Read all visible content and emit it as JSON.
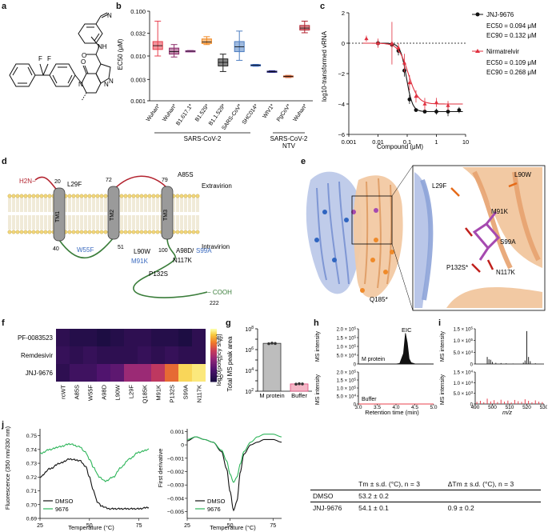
{
  "panel_labels": [
    "a",
    "b",
    "c",
    "d",
    "e",
    "f",
    "g",
    "h",
    "i",
    "j"
  ],
  "colors": {
    "jnj": "#111111",
    "nirm": "#e0303f",
    "wuhan": "#e8404e",
    "delta": "#8c2c6a",
    "b1617": "#a84aa0",
    "b1529": "#f08a24",
    "ba": "#222222",
    "sars1": "#4f7fc2",
    "shc014": "#3a6abf",
    "wiv1": "#2a2a86",
    "pgcov": "#c9663c",
    "wuhan_ntv": "#b3232f",
    "gray_bar": "#bdbdbd",
    "pink_bar": "#f4b6c6",
    "membrane": "#f3d77a",
    "loop_red": "#b3232f",
    "loop_green": "#3a7d3a",
    "tm_gray": "#9a9a9a",
    "blue_mut": "#3a6abf",
    "dmso": "#111111",
    "c9676": "#2eb55a"
  },
  "panel_a": {
    "label": "a",
    "struct_text": [
      "F",
      "F",
      "N",
      "O",
      "N",
      "N",
      "O",
      "NH",
      "N"
    ]
  },
  "panel_b": {
    "ylabel": "EC50 (μM)",
    "y_ticks": [
      {
        "v": 0.001,
        "t": "0.001"
      },
      {
        "v": 0.003,
        "t": "0.003"
      },
      {
        "v": 0.01,
        "t": "0.010"
      },
      {
        "v": 0.032,
        "t": "0.032"
      },
      {
        "v": 0.1,
        "t": "0.100"
      }
    ],
    "group_labels": [
      "SARS-CoV-2",
      "SARS-CoV-2 NTV"
    ]
  },
  "panel_c": {
    "ylabel": "log10-transformed vRNA",
    "xlabel": "Compound (μM)",
    "x_ticks": [
      "0.001",
      "0.01",
      "0.1",
      "1",
      "10"
    ],
    "y_ticks": [
      "2",
      "0",
      "−2",
      "−4",
      "−6"
    ],
    "legend": [
      {
        "name": "JNJ-9676",
        "ec50": "EC50 = 0.094 μM",
        "ec90": "EC90 = 0.132 μM"
      },
      {
        "name": "Nirmatrelvir",
        "ec50": "EC50 = 0.109 μM",
        "ec90": "EC90 = 0.268 μM"
      }
    ]
  },
  "panel_d": {
    "labels": {
      "nterm": "H2N−",
      "cterm": "− COOH",
      "extravirion": "Extravirion",
      "intravirion": "Intravirion",
      "tm1": "TM1",
      "tm2": "TM2",
      "tm3": "TM3",
      "n20": "20",
      "n40": "40",
      "n72": "72",
      "n51": "51",
      "n79": "79",
      "n100": "100",
      "n222": "222"
    },
    "mutations_black": [
      "L29F",
      "A85S",
      "L90W",
      "N117K",
      "P132S"
    ],
    "mutations_blue": [
      "W55F",
      "M91K",
      "S99A"
    ],
    "a98d": "A98D/"
  },
  "panel_e": {
    "inset_labels": [
      "L90W",
      "L29F",
      "M91K",
      "S99A",
      "P132S*",
      "N117K"
    ],
    "q185": "Q185*"
  },
  "panel_f": {
    "rows": [
      "PF-0083523",
      "Remdesivir",
      "JNJ-9676"
    ],
    "cols": [
      "rcWT",
      "A85S",
      "W55F",
      "A98D",
      "L90W",
      "L29F",
      "Q185K",
      "M91K",
      "P132S",
      "S99A",
      "N117K"
    ],
    "colorbar_label": "log10[potency shift]",
    "colorbar_ticks": [
      "2",
      "1",
      "0"
    ]
  },
  "panel_g": {
    "ylabel": "Total MS peak area",
    "categories": [
      "M protein",
      "Buffer"
    ],
    "y_ticks": [
      "10^8",
      "10^7",
      "10^6",
      "10^5",
      "10^4",
      "10^3",
      "10^2"
    ]
  },
  "panel_h": {
    "eic": "EIC",
    "ylabel": "MS intensity",
    "xlabel": "Retention time (min)",
    "x_ticks": [
      "3.0",
      "3.5",
      "4.0",
      "4.5",
      "5.0"
    ],
    "y_ticks": [
      "2.0 × 10^5",
      "1.5 × 10^5",
      "1.0 × 10^5",
      "5.0 × 10^4",
      "0"
    ],
    "trace_labels": [
      "M protein",
      "Buffer"
    ]
  },
  "panel_i": {
    "xlabel": "m/z",
    "x_ticks": [
      "490",
      "500",
      "510",
      "520",
      "530"
    ],
    "top_y_ticks": [
      "1.5 × 10^5",
      "1.0 × 10^5",
      "5.0 × 10^4",
      "0"
    ],
    "bottom_y_ticks": [
      "1.5 × 10^4",
      "1.0 × 10^4",
      "5.0 × 10^3",
      "0"
    ]
  },
  "panel_j": {
    "left_ylabel": "Fluorescence (350 nm/330 nm)",
    "left_y_ticks": [
      "0.75",
      "0.74",
      "0.73",
      "0.72",
      "0.71",
      "0.70",
      "0.69"
    ],
    "mid_ylabel": "First derivative",
    "mid_y_ticks": [
      "0.001",
      "0",
      "−0.001",
      "−0.002",
      "−0.003",
      "−0.004",
      "−0.005"
    ],
    "xlabel": "Temperature (°C)",
    "x_ticks": [
      "25",
      "50",
      "75"
    ],
    "legend": [
      "DMSO",
      "9676"
    ],
    "table": {
      "headers": [
        "",
        "Tm ± s.d. (°C), n = 3",
        "ΔTm ± s.d. (°C), n = 3"
      ],
      "rows": [
        [
          "DMSO",
          "53.2 ± 0.2",
          ""
        ],
        [
          "JNJ-9676",
          "54.1 ± 0.1",
          "0.9 ± 0.2"
        ]
      ]
    }
  },
  "chart_data": [
    {
      "panel": "b",
      "type": "box",
      "ylabel": "EC50 (μM)",
      "yscale": "log",
      "ylim": [
        0.001,
        0.1
      ],
      "categories": [
        "Wuhan*",
        "Wuhan*",
        "B1.617.1*",
        "B1.529*",
        "B1.1.529*",
        "SARS-CoV*",
        "SHC014*",
        "WIV1*",
        "PgCoV*",
        "Wuhan*"
      ],
      "boxes": [
        {
          "min": 0.01,
          "q1": 0.014,
          "median": 0.017,
          "q3": 0.021,
          "max": 0.06
        },
        {
          "min": 0.0095,
          "q1": 0.011,
          "median": 0.0125,
          "q3": 0.015,
          "max": 0.018
        },
        {
          "min": 0.0123,
          "q1": 0.0125,
          "median": 0.0128,
          "q3": 0.0131,
          "max": 0.0133
        },
        {
          "min": 0.018,
          "q1": 0.019,
          "median": 0.0205,
          "q3": 0.024,
          "max": 0.027
        },
        {
          "min": 0.0045,
          "q1": 0.006,
          "median": 0.0072,
          "q3": 0.0086,
          "max": 0.011
        },
        {
          "min": 0.008,
          "q1": 0.0125,
          "median": 0.016,
          "q3": 0.021,
          "max": 0.036
        },
        {
          "min": 0.0059,
          "q1": 0.006,
          "median": 0.0062,
          "q3": 0.0064,
          "max": 0.0065
        },
        {
          "min": 0.0043,
          "q1": 0.0044,
          "median": 0.0045,
          "q3": 0.0046,
          "max": 0.0047
        },
        {
          "min": 0.0033,
          "q1": 0.0034,
          "median": 0.0035,
          "q3": 0.0036,
          "max": 0.0037
        },
        {
          "min": 0.033,
          "q1": 0.038,
          "median": 0.042,
          "q3": 0.048,
          "max": 0.06
        }
      ]
    },
    {
      "panel": "c",
      "type": "scatter",
      "xscale": "log",
      "xlim": [
        0.001,
        10
      ],
      "ylim": [
        -6,
        2
      ],
      "xlabel": "Compound (μM)",
      "ylabel": "log10-transformed vRNA",
      "series": [
        {
          "name": "JNJ-9676",
          "x": [
            0.01,
            0.03,
            0.05,
            0.08,
            0.12,
            0.2,
            0.4,
            1.0,
            2.5,
            6.0
          ],
          "y": [
            0.0,
            -0.1,
            -0.5,
            -1.8,
            -3.7,
            -4.4,
            -4.5,
            -4.5,
            -4.5,
            -4.4
          ],
          "err": [
            0.2,
            0.2,
            0.3,
            0.4,
            0.3,
            0.1,
            0.1,
            0.2,
            0.3,
            0.2
          ]
        },
        {
          "name": "Nirmatrelvir",
          "x": [
            0.004,
            0.01,
            0.03,
            0.05,
            0.08,
            0.12,
            0.2,
            0.4,
            1.0,
            2.5
          ],
          "y": [
            0.3,
            0.0,
            0.0,
            -0.3,
            -1.3,
            -2.6,
            -3.5,
            -4.0,
            -3.9,
            -4.1
          ],
          "err": [
            0.2,
            0.3,
            1.4,
            0.3,
            0.6,
            0.5,
            0.4,
            0.4,
            0.3,
            0.3
          ]
        }
      ]
    },
    {
      "panel": "f",
      "type": "heatmap",
      "clim": [
        -0.3,
        2.5
      ],
      "rows": [
        "PF-0083523",
        "Remdesivir",
        "JNJ-9676"
      ],
      "cols": [
        "rcWT",
        "A85S",
        "W55F",
        "A98D",
        "L90W",
        "L29F",
        "Q185K",
        "M91K",
        "P132S",
        "S99A",
        "N117K"
      ],
      "values": [
        [
          0.0,
          -0.1,
          -0.1,
          -0.2,
          -0.1,
          0.0,
          0.0,
          -0.1,
          -0.1,
          -0.2,
          0.0
        ],
        [
          0.1,
          0.0,
          0.1,
          0.0,
          0.0,
          0.0,
          0.1,
          0.0,
          0.1,
          0.0,
          0.0
        ],
        [
          0.0,
          0.2,
          0.2,
          0.4,
          0.5,
          1.0,
          1.0,
          1.3,
          1.7,
          2.3,
          2.4
        ]
      ]
    },
    {
      "panel": "g",
      "type": "bar",
      "yscale": "log",
      "ylim": [
        100,
        100000000
      ],
      "ylabel": "Total MS peak area",
      "categories": [
        "M protein",
        "Buffer"
      ],
      "values": [
        4000000,
        500
      ],
      "points": [
        [
          3700000,
          4200000,
          3900000
        ],
        [
          480,
          520,
          500
        ]
      ]
    },
    {
      "panel": "h",
      "type": "line",
      "xlim": [
        3.0,
        5.0
      ],
      "ylim": [
        0,
        200000
      ],
      "xlabel": "Retention time (min)",
      "ylabel": "MS intensity",
      "series": [
        {
          "name": "M protein",
          "x": [
            3.0,
            4.0,
            4.1,
            4.2,
            4.25,
            4.3,
            4.35,
            4.4,
            4.5,
            5.0
          ],
          "y": [
            0,
            0,
            3000,
            60000,
            175000,
            120000,
            30000,
            8000,
            1000,
            0
          ]
        },
        {
          "name": "Buffer",
          "x": [
            3.0,
            4.0,
            5.0
          ],
          "y": [
            0,
            0,
            0
          ]
        }
      ]
    },
    {
      "panel": "i",
      "type": "bar",
      "xlabel": "m/z",
      "xlim": [
        490,
        530
      ],
      "series": [
        {
          "name": "M protein",
          "ylim": [
            0,
            150000
          ],
          "x": [
            497,
            498,
            499,
            500,
            502,
            505,
            508,
            512,
            518,
            519,
            520,
            521,
            522,
            525
          ],
          "y": [
            30000,
            20000,
            18000,
            9000,
            5000,
            4000,
            3000,
            2000,
            6000,
            15000,
            140000,
            30000,
            12000,
            3000
          ]
        },
        {
          "name": "Buffer",
          "ylim": [
            0,
            15000
          ],
          "x": [
            491,
            493,
            495,
            497,
            499,
            501,
            503,
            505,
            507,
            509,
            511,
            513,
            515,
            517,
            519,
            521,
            523,
            525,
            527,
            529
          ],
          "y": [
            1000,
            1500,
            800,
            2500,
            1200,
            1800,
            900,
            2000,
            1100,
            1600,
            700,
            1900,
            1300,
            1000,
            2200,
            1500,
            800,
            1700,
            1100,
            900
          ]
        }
      ]
    },
    {
      "panel": "j-fluorescence",
      "type": "line",
      "xlim": [
        25,
        80
      ],
      "ylim": [
        0.69,
        0.755
      ],
      "xlabel": "Temperature (°C)",
      "ylabel": "Fluorescence (350 nm/330 nm)",
      "series": [
        {
          "name": "DMSO",
          "x": [
            25,
            30,
            35,
            40,
            45,
            48,
            50,
            52,
            54,
            56,
            60,
            65,
            70,
            75,
            80
          ],
          "y": [
            0.72,
            0.726,
            0.73,
            0.733,
            0.732,
            0.728,
            0.72,
            0.71,
            0.702,
            0.699,
            0.697,
            0.697,
            0.697,
            0.697,
            0.698
          ]
        },
        {
          "name": "9676",
          "x": [
            25,
            30,
            35,
            40,
            45,
            48,
            50,
            52,
            55,
            58,
            62,
            66,
            70,
            75,
            80
          ],
          "y": [
            0.737,
            0.74,
            0.742,
            0.744,
            0.742,
            0.738,
            0.733,
            0.727,
            0.72,
            0.717,
            0.72,
            0.727,
            0.733,
            0.738,
            0.74
          ]
        }
      ]
    },
    {
      "panel": "j-derivative",
      "type": "line",
      "xlim": [
        25,
        80
      ],
      "ylim": [
        -0.0055,
        0.0012
      ],
      "xlabel": "Temperature (°C)",
      "ylabel": "First derivative",
      "series": [
        {
          "name": "DMSO",
          "x": [
            25,
            30,
            35,
            40,
            45,
            48,
            50,
            52,
            54,
            56,
            58,
            62,
            66,
            70,
            75,
            80
          ],
          "y": [
            0.0003,
            0.0006,
            0.0004,
            0.0002,
            -0.0005,
            -0.0018,
            -0.0035,
            -0.0049,
            -0.0042,
            -0.002,
            -0.0007,
            0.0,
            0.0002,
            0.0004,
            0.0004,
            0.0002
          ]
        },
        {
          "name": "9676",
          "x": [
            25,
            30,
            35,
            40,
            45,
            48,
            50,
            52,
            54,
            56,
            58,
            62,
            66,
            70,
            75,
            80
          ],
          "y": [
            0.0004,
            0.0006,
            0.0004,
            0.0002,
            -0.0004,
            -0.0012,
            -0.0022,
            -0.0028,
            -0.0024,
            -0.0014,
            -0.0005,
            0.0002,
            0.0006,
            0.0008,
            0.0008,
            0.0006
          ]
        }
      ]
    }
  ]
}
